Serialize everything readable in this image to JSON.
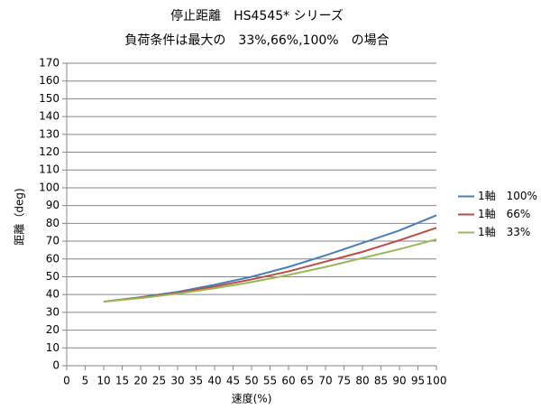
{
  "chart_data": {
    "type": "line",
    "title": "停止距離　HS4545* シリーズ",
    "subtitle": "負荷条件は最大の　33%,66%,100%　の場合",
    "x_label": "速度(%)",
    "y_label": "距離（deg)",
    "x": [
      10,
      20,
      30,
      40,
      50,
      60,
      70,
      80,
      90,
      100
    ],
    "series": [
      {
        "name": "1軸　100%",
        "color": "#4a7ebb",
        "values": [
          36,
          38.5,
          41.5,
          45.5,
          50,
          55.5,
          62,
          69,
          76,
          84.5
        ]
      },
      {
        "name": "1軸　66%",
        "color": "#be4b48",
        "values": [
          36,
          38.3,
          41,
          44.5,
          48.5,
          53,
          58.5,
          64,
          70.5,
          77.5
        ]
      },
      {
        "name": "1軸　33%",
        "color": "#98b954",
        "values": [
          36,
          38,
          40.5,
          43.5,
          47,
          51,
          55.5,
          60.5,
          65.5,
          71
        ]
      }
    ],
    "xlim": [
      0,
      100
    ],
    "xticks": [
      0,
      5,
      10,
      15,
      20,
      25,
      30,
      35,
      40,
      45,
      50,
      55,
      60,
      65,
      70,
      75,
      80,
      85,
      90,
      95,
      100
    ],
    "ylim": [
      0,
      170
    ],
    "yticks": [
      0,
      10,
      20,
      30,
      40,
      50,
      60,
      70,
      80,
      90,
      100,
      110,
      120,
      130,
      140,
      150,
      160,
      170
    ],
    "grid": true,
    "legend": "right"
  }
}
